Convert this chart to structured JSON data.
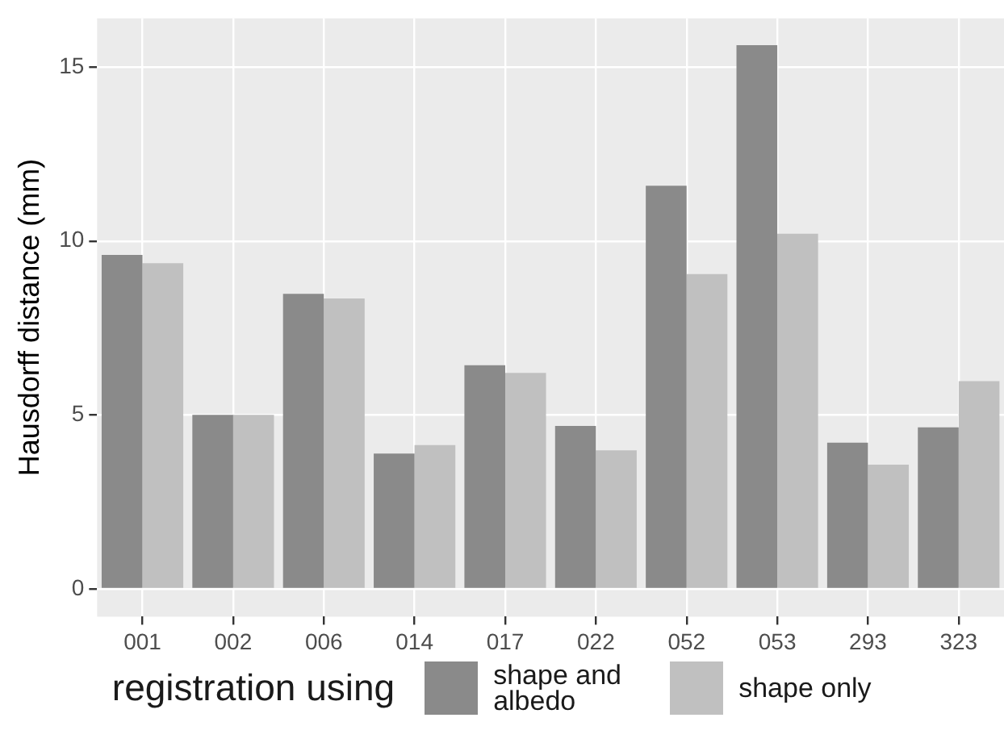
{
  "chart_data": {
    "type": "bar",
    "ylabel": "Hausdorff distance (mm)",
    "legend_title": "registration using",
    "categories": [
      "001",
      "002",
      "006",
      "014",
      "017",
      "022",
      "052",
      "053",
      "293",
      "323"
    ],
    "series": [
      {
        "name": "shape and albedo",
        "color": "#8a8a8a",
        "values": [
          9.6,
          5.0,
          8.48,
          3.89,
          6.43,
          4.68,
          11.59,
          15.63,
          4.2,
          4.64
        ]
      },
      {
        "name": "shape only",
        "color": "#c0c0c0",
        "values": [
          9.36,
          5.0,
          8.35,
          4.13,
          6.21,
          3.98,
          9.05,
          10.21,
          3.57,
          5.97
        ]
      }
    ],
    "ylim": [
      -0.8,
      16.4
    ],
    "yticks": [
      0,
      5,
      10,
      15
    ],
    "grid": true,
    "legend": "bottom"
  }
}
